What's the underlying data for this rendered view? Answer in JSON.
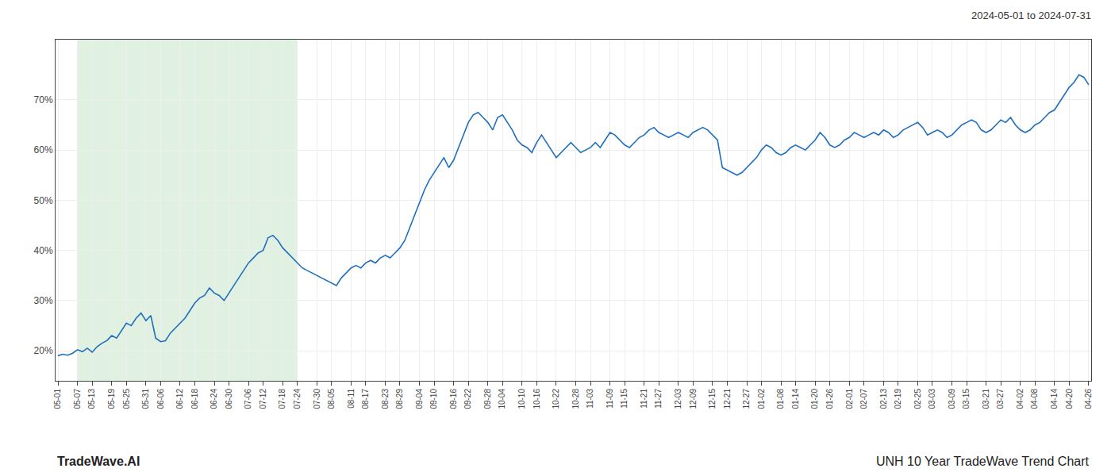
{
  "chart_data": {
    "type": "line",
    "title": "2024-05-01 to 2024-07-31",
    "annotations": [
      "TradeWave.AI",
      "UNH 10 Year TradeWave Trend Chart"
    ],
    "color": "#1f6fbe",
    "grid": true,
    "highlight": {
      "from": "05-07",
      "to": "07-24",
      "color": "#c8e6c8"
    },
    "ylim": [
      14,
      82
    ],
    "yticks": [
      {
        "value": 20,
        "label": "20%"
      },
      {
        "value": 30,
        "label": "30%"
      },
      {
        "value": 40,
        "label": "40%"
      },
      {
        "value": 50,
        "label": "50%"
      },
      {
        "value": 60,
        "label": "60%"
      },
      {
        "value": 70,
        "label": "70%"
      }
    ],
    "categories": [
      "05-01",
      null,
      null,
      null,
      "05-07",
      null,
      null,
      "05-13",
      null,
      null,
      null,
      "05-19",
      null,
      null,
      "05-25",
      null,
      null,
      null,
      "05-31",
      null,
      null,
      "06-06",
      null,
      null,
      null,
      "06-12",
      null,
      null,
      "06-18",
      null,
      null,
      null,
      "06-24",
      null,
      null,
      "06-30",
      null,
      null,
      null,
      "07-06",
      null,
      null,
      "07-12",
      null,
      null,
      null,
      "07-18",
      null,
      null,
      "07-24",
      null,
      null,
      null,
      "07-30",
      null,
      null,
      "08-05",
      null,
      null,
      null,
      "08-11",
      null,
      null,
      "08-17",
      null,
      null,
      null,
      "08-23",
      null,
      null,
      "08-29",
      null,
      null,
      null,
      "09-04",
      null,
      null,
      "09-10",
      null,
      null,
      null,
      "09-16",
      null,
      null,
      "09-22",
      null,
      null,
      null,
      "09-28",
      null,
      null,
      "10-04",
      null,
      null,
      null,
      "10-10",
      null,
      null,
      "10-16",
      null,
      null,
      null,
      "10-22",
      null,
      null,
      null,
      "10-28",
      null,
      null,
      "11-03",
      null,
      null,
      null,
      "11-09",
      null,
      null,
      "11-15",
      null,
      null,
      null,
      "11-21",
      null,
      null,
      "11-27",
      null,
      null,
      null,
      "12-03",
      null,
      null,
      "12-09",
      null,
      null,
      null,
      "12-15",
      null,
      null,
      "12-21",
      null,
      null,
      null,
      "12-27",
      null,
      null,
      "01-02",
      null,
      null,
      null,
      "01-08",
      null,
      null,
      "01-14",
      null,
      null,
      null,
      "01-20",
      null,
      null,
      "01-26",
      null,
      null,
      null,
      "02-01",
      null,
      null,
      "02-07",
      null,
      null,
      null,
      "02-13",
      null,
      null,
      "02-19",
      null,
      null,
      null,
      "02-25",
      null,
      null,
      "03-03",
      null,
      null,
      null,
      "03-09",
      null,
      null,
      "03-15",
      null,
      null,
      null,
      "03-21",
      null,
      null,
      "03-27",
      null,
      null,
      null,
      "04-02",
      null,
      null,
      "04-08",
      null,
      null,
      null,
      "04-14",
      null,
      null,
      "04-20",
      null,
      null,
      null,
      "04-26"
    ],
    "values": [
      19.0,
      19.3,
      19.1,
      19.5,
      20.2,
      19.8,
      20.5,
      19.7,
      20.8,
      21.5,
      22.0,
      23.0,
      22.5,
      24.0,
      25.5,
      25.0,
      26.5,
      27.5,
      26.0,
      27.0,
      22.5,
      21.8,
      22.0,
      23.5,
      24.5,
      25.5,
      26.5,
      28.0,
      29.5,
      30.5,
      31.0,
      32.5,
      31.5,
      31.0,
      30.0,
      31.5,
      33.0,
      34.5,
      36.0,
      37.5,
      38.5,
      39.5,
      40.0,
      42.5,
      43.0,
      42.0,
      40.5,
      39.5,
      38.5,
      37.5,
      36.5,
      36.0,
      35.5,
      35.0,
      34.5,
      34.0,
      33.5,
      33.0,
      34.5,
      35.5,
      36.5,
      37.0,
      36.5,
      37.5,
      38.0,
      37.5,
      38.5,
      39.0,
      38.5,
      39.5,
      40.5,
      42.0,
      44.5,
      47.0,
      49.5,
      52.0,
      54.0,
      55.5,
      57.0,
      58.5,
      56.5,
      58.0,
      60.5,
      63.0,
      65.5,
      67.0,
      67.5,
      66.5,
      65.5,
      64.0,
      66.5,
      67.0,
      65.5,
      64.0,
      62.0,
      61.0,
      60.5,
      59.5,
      61.5,
      63.0,
      61.5,
      60.0,
      58.5,
      59.5,
      60.5,
      61.5,
      60.5,
      59.5,
      60.0,
      60.5,
      61.5,
      60.5,
      62.0,
      63.5,
      63.0,
      62.0,
      61.0,
      60.5,
      61.5,
      62.5,
      63.0,
      64.0,
      64.5,
      63.5,
      63.0,
      62.5,
      63.0,
      63.5,
      63.0,
      62.5,
      63.5,
      64.0,
      64.5,
      64.0,
      63.0,
      62.0,
      56.5,
      56.0,
      55.5,
      55.0,
      55.5,
      56.5,
      57.5,
      58.5,
      60.0,
      61.0,
      60.5,
      59.5,
      59.0,
      59.5,
      60.5,
      61.0,
      60.5,
      60.0,
      61.0,
      62.0,
      63.5,
      62.5,
      61.0,
      60.5,
      61.0,
      62.0,
      62.5,
      63.5,
      63.0,
      62.5,
      63.0,
      63.5,
      63.0,
      64.0,
      63.5,
      62.5,
      63.0,
      64.0,
      64.5,
      65.0,
      65.5,
      64.5,
      63.0,
      63.5,
      64.0,
      63.5,
      62.5,
      63.0,
      64.0,
      65.0,
      65.5,
      66.0,
      65.5,
      64.0,
      63.5,
      64.0,
      65.0,
      66.0,
      65.5,
      66.5,
      65.0,
      64.0,
      63.5,
      64.0,
      65.0,
      65.5,
      66.5,
      67.5,
      68.0,
      69.5,
      71.0,
      72.5,
      73.5,
      75.0,
      74.5,
      73.0
    ]
  }
}
